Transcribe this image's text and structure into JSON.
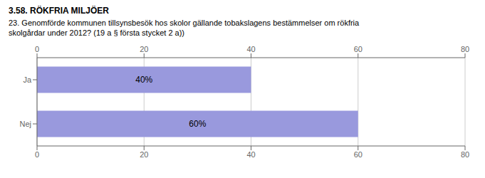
{
  "chart_data": {
    "type": "bar",
    "orientation": "horizontal",
    "title": "3.58. RÖKFRIA MILJÖER",
    "subtitle": "23. Genomförde kommunen tillsynsbesök hos skolor gällande tobakslagens bestämmelser om rökfria\nskolgårdar under 2012? (19 a § första stycket 2 a))",
    "categories": [
      "Ja",
      "Nej"
    ],
    "values": [
      40,
      60
    ],
    "value_labels": [
      "40%",
      "60%"
    ],
    "data_labels": true,
    "color": "#9999dd",
    "xlim": [
      0,
      80
    ],
    "xticks": [
      0,
      20,
      40,
      60,
      80
    ],
    "grid": true
  }
}
